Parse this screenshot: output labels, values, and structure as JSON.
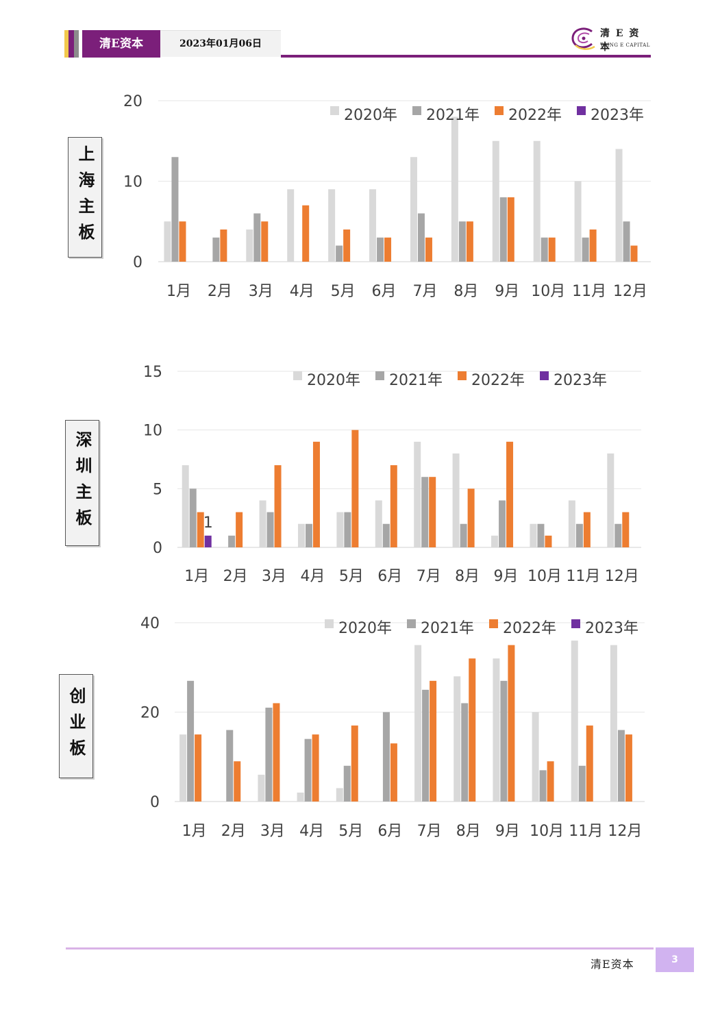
{
  "header": {
    "brand": "清E资本",
    "date": "2023年01月06日",
    "logo_cn": "清 E 资 本",
    "logo_en": "TSING E CAPITAL",
    "colors": {
      "brand": "#7b1f7a",
      "stripe_yellow": "#f2c94c",
      "stripe_purple": "#7b1f7a",
      "stripe_grey": "#8c8c8c"
    }
  },
  "footer": {
    "brand": "清E资本",
    "page_number": "3"
  },
  "legend_labels": [
    "2020年",
    "2021年",
    "2022年",
    "2023年"
  ],
  "series_colors": [
    "#d9d9d9",
    "#a6a6a6",
    "#ed7d31",
    "#7030a0"
  ],
  "chart_data": [
    {
      "type": "bar",
      "label": "上海主板",
      "categories": [
        "1月",
        "2月",
        "3月",
        "4月",
        "5月",
        "6月",
        "7月",
        "8月",
        "9月",
        "10月",
        "11月",
        "12月"
      ],
      "series": [
        {
          "name": "2020年",
          "values": [
            5,
            0,
            4,
            9,
            9,
            9,
            13,
            18,
            15,
            15,
            10,
            14
          ]
        },
        {
          "name": "2021年",
          "values": [
            13,
            3,
            6,
            0,
            2,
            3,
            6,
            5,
            8,
            3,
            3,
            5
          ]
        },
        {
          "name": "2022年",
          "values": [
            5,
            4,
            5,
            7,
            4,
            3,
            3,
            5,
            8,
            3,
            4,
            2
          ]
        },
        {
          "name": "2023年",
          "values": [
            0,
            0,
            0,
            0,
            0,
            0,
            0,
            0,
            0,
            0,
            0,
            0
          ]
        }
      ],
      "ylim": [
        0,
        20
      ],
      "yticks": [
        0,
        10,
        20
      ],
      "legend": "top-right",
      "grid": true,
      "data_labels": []
    },
    {
      "type": "bar",
      "label": "深圳主板",
      "categories": [
        "1月",
        "2月",
        "3月",
        "4月",
        "5月",
        "6月",
        "7月",
        "8月",
        "9月",
        "10月",
        "11月",
        "12月"
      ],
      "series": [
        {
          "name": "2020年",
          "values": [
            7,
            0,
            4,
            2,
            3,
            4,
            9,
            8,
            1,
            2,
            4,
            8
          ]
        },
        {
          "name": "2021年",
          "values": [
            5,
            1,
            3,
            2,
            3,
            2,
            6,
            2,
            4,
            2,
            2,
            2
          ]
        },
        {
          "name": "2022年",
          "values": [
            3,
            3,
            7,
            9,
            10,
            7,
            6,
            5,
            9,
            1,
            3,
            3
          ]
        },
        {
          "name": "2023年",
          "values": [
            1,
            0,
            0,
            0,
            0,
            0,
            0,
            0,
            0,
            0,
            0,
            0
          ]
        }
      ],
      "ylim": [
        0,
        15
      ],
      "yticks": [
        0,
        5,
        10,
        15
      ],
      "legend": "top-right",
      "grid": true,
      "data_labels": [
        {
          "series": 3,
          "category": 0,
          "text": "1"
        }
      ]
    },
    {
      "type": "bar",
      "label": "创业板",
      "categories": [
        "1月",
        "2月",
        "3月",
        "4月",
        "5月",
        "6月",
        "7月",
        "8月",
        "9月",
        "10月",
        "11月",
        "12月"
      ],
      "series": [
        {
          "name": "2020年",
          "values": [
            15,
            0,
            6,
            2,
            3,
            0,
            35,
            28,
            32,
            20,
            36,
            35
          ]
        },
        {
          "name": "2021年",
          "values": [
            27,
            16,
            21,
            14,
            8,
            20,
            25,
            22,
            27,
            7,
            8,
            16
          ]
        },
        {
          "name": "2022年",
          "values": [
            15,
            9,
            22,
            15,
            17,
            13,
            27,
            32,
            35,
            9,
            17,
            15
          ]
        },
        {
          "name": "2023年",
          "values": [
            0,
            0,
            0,
            0,
            0,
            0,
            0,
            0,
            0,
            0,
            0,
            0
          ]
        }
      ],
      "ylim": [
        0,
        40
      ],
      "yticks": [
        0,
        20,
        40
      ],
      "legend": "top-right",
      "grid": true,
      "data_labels": []
    }
  ]
}
